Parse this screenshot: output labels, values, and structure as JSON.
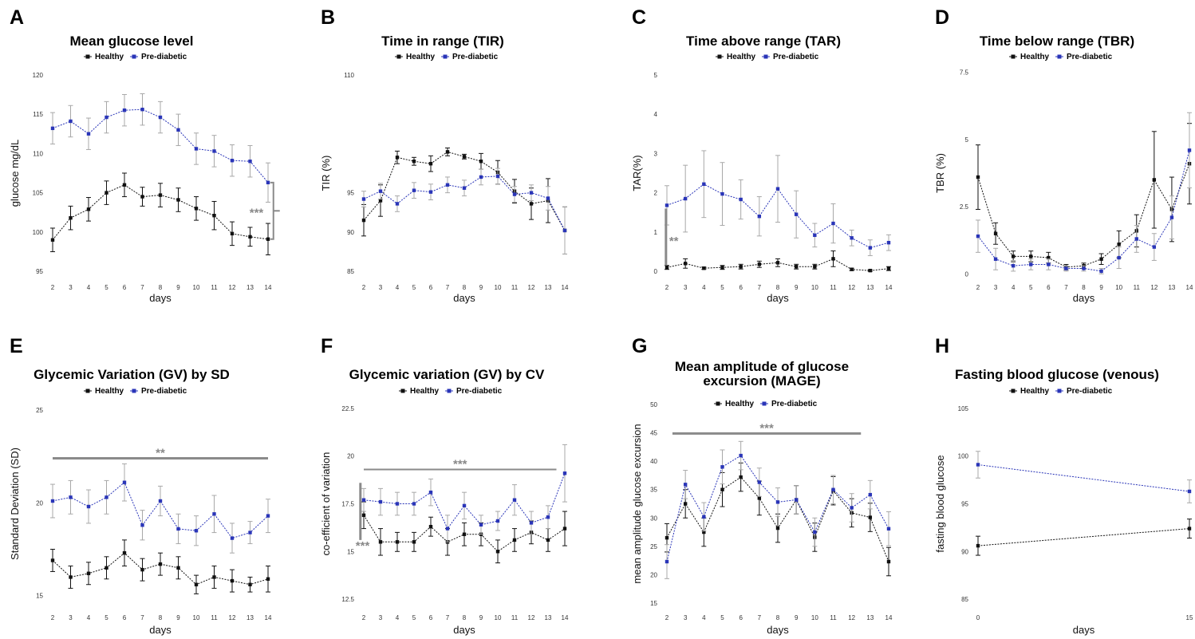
{
  "colors": {
    "healthy": "#111111",
    "prediabetic": "#2a35b8",
    "errbar_pre": "#a8a8a8",
    "sig": "#8a8a8a"
  },
  "chart_data": [
    {
      "letter": "A",
      "type": "line",
      "title": "Mean glucose level",
      "xlabel": "days",
      "ylabel": "glucose mg/dL",
      "ylim": [
        94,
        121
      ],
      "yticks": [
        95,
        100,
        105,
        110,
        115,
        120
      ],
      "x": [
        2,
        3,
        4,
        5,
        6,
        7,
        8,
        9,
        10,
        11,
        12,
        13,
        14
      ],
      "xticks": [
        "2",
        "3",
        "4",
        "5",
        "6",
        "7",
        "8",
        "9",
        "10",
        "11",
        "12",
        "13",
        "14"
      ],
      "legend": [
        "Healthy",
        "Pre-diabetic"
      ],
      "series": [
        {
          "name": "Healthy",
          "values": [
            99,
            101.8,
            102.9,
            105,
            106,
            104.5,
            104.7,
            104.1,
            103,
            102.1,
            99.8,
            99.4,
            99.1
          ],
          "err": [
            1.5,
            1.5,
            1.5,
            1.5,
            1.5,
            1.2,
            1.5,
            1.5,
            1.5,
            1.8,
            1.5,
            1.2,
            2
          ]
        },
        {
          "name": "Pre-diabetic",
          "values": [
            113.2,
            114.1,
            112.5,
            114.6,
            115.5,
            115.6,
            114.6,
            113,
            110.6,
            110.3,
            109.1,
            109,
            106.3
          ],
          "err": [
            2,
            2,
            2,
            2,
            2,
            2,
            2,
            2,
            2,
            2,
            2,
            2,
            2.5
          ]
        }
      ],
      "sig": {
        "label": "***",
        "kind": "bracket",
        "x": 14.3,
        "y1": 99.1,
        "y2": 106.3
      }
    },
    {
      "letter": "B",
      "type": "line",
      "title": "Time in range (TIR)",
      "xlabel": "days",
      "ylabel": "TIR (%)",
      "ylim": [
        84,
        111
      ],
      "yticks": [
        85,
        90,
        95,
        110
      ],
      "x": [
        2,
        3,
        4,
        5,
        6,
        7,
        8,
        9,
        10,
        11,
        12,
        13,
        14
      ],
      "xticks": [
        "2",
        "3",
        "4",
        "5",
        "6",
        "7",
        "8",
        "9",
        "10",
        "11",
        "12",
        "13",
        "14"
      ],
      "legend": [
        "Healthy",
        "Pre-diabetic"
      ],
      "series": [
        {
          "name": "Healthy",
          "values": [
            91.5,
            94,
            99.5,
            99,
            98.7,
            100.2,
            99.6,
            99,
            97.6,
            95.2,
            93.6,
            94,
            90.2
          ],
          "err": [
            2,
            2,
            0.8,
            0.5,
            1,
            0.5,
            0.3,
            1,
            1.5,
            1.5,
            2,
            2.8,
            3
          ]
        },
        {
          "name": "Pre-diabetic",
          "values": [
            94.2,
            95.2,
            93.6,
            95.3,
            95.1,
            96,
            95.6,
            97,
            97.1,
            94.8,
            95,
            94.3,
            90.2
          ],
          "err": [
            1,
            1,
            1,
            1,
            1,
            1,
            1,
            1,
            1,
            1,
            1,
            1.5,
            3
          ]
        }
      ]
    },
    {
      "letter": "C",
      "type": "line",
      "title": "Time above range (TAR)",
      "xlabel": "days",
      "ylabel": "TAR(%)",
      "ylim": [
        -0.2,
        5.2
      ],
      "yticks": [
        0,
        1,
        2,
        3,
        4,
        5
      ],
      "x": [
        2,
        3,
        4,
        5,
        6,
        7,
        8,
        9,
        10,
        11,
        12,
        13,
        14
      ],
      "xticks": [
        "2",
        "3",
        "4",
        "5",
        "6",
        "7",
        "8",
        "9",
        "10",
        "11",
        "12",
        "13",
        "14"
      ],
      "legend": [
        "Healthy",
        "Pre-diabetic"
      ],
      "series": [
        {
          "name": "Healthy",
          "values": [
            0.1,
            0.2,
            0.08,
            0.1,
            0.12,
            0.18,
            0.22,
            0.12,
            0.12,
            0.32,
            0.05,
            0.02,
            0.07
          ],
          "err": [
            0.05,
            0.12,
            0.03,
            0.05,
            0.06,
            0.08,
            0.1,
            0.06,
            0.06,
            0.2,
            0.03,
            0.02,
            0.05
          ]
        },
        {
          "name": "Pre-diabetic",
          "values": [
            1.68,
            1.85,
            2.22,
            1.97,
            1.83,
            1.4,
            2.1,
            1.45,
            0.92,
            1.22,
            0.85,
            0.6,
            0.73
          ],
          "err": [
            0.5,
            0.85,
            0.85,
            0.8,
            0.5,
            0.5,
            0.85,
            0.6,
            0.3,
            0.5,
            0.2,
            0.2,
            0.2
          ]
        }
      ],
      "sig": {
        "label": "**",
        "kind": "vline",
        "x": 1.95,
        "y1": 0.15,
        "y2": 1.6
      }
    },
    {
      "letter": "D",
      "type": "line",
      "title": "Time below range (TBR)",
      "xlabel": "days",
      "ylabel": "TBR (%)",
      "ylim": [
        -0.2,
        7.7
      ],
      "yticks": [
        0,
        2.5,
        5,
        7.5
      ],
      "x": [
        2,
        3,
        4,
        5,
        6,
        7,
        8,
        9,
        10,
        11,
        12,
        13,
        14
      ],
      "xticks": [
        "2",
        "3",
        "4",
        "5",
        "6",
        "7",
        "8",
        "9",
        "10",
        "11",
        "12",
        "13",
        "14"
      ],
      "legend": [
        "Healthy",
        "Pre-diabetic"
      ],
      "series": [
        {
          "name": "Healthy",
          "values": [
            3.6,
            1.5,
            0.65,
            0.65,
            0.6,
            0.25,
            0.3,
            0.55,
            1.1,
            1.6,
            3.5,
            2.4,
            4.1
          ],
          "err": [
            1.2,
            0.4,
            0.2,
            0.2,
            0.2,
            0.1,
            0.1,
            0.2,
            0.5,
            0.6,
            1.8,
            1.2,
            1.5
          ]
        },
        {
          "name": "Pre-diabetic",
          "values": [
            1.4,
            0.55,
            0.3,
            0.35,
            0.35,
            0.2,
            0.2,
            0.1,
            0.6,
            1.3,
            1,
            2.1,
            4.6
          ],
          "err": [
            0.6,
            0.4,
            0.2,
            0.2,
            0.2,
            0.1,
            0.1,
            0.1,
            0.4,
            0.5,
            0.5,
            0.8,
            1.4
          ]
        }
      ]
    },
    {
      "letter": "E",
      "type": "line",
      "title": "Glycemic Variation (GV) by SD",
      "xlabel": "days",
      "ylabel": "Standard Deviation (SD)",
      "ylim": [
        14.3,
        25.6
      ],
      "yticks": [
        15,
        20,
        25
      ],
      "x": [
        2,
        3,
        4,
        5,
        6,
        7,
        8,
        9,
        10,
        11,
        12,
        13,
        14
      ],
      "xticks": [
        "2",
        "3",
        "4",
        "5",
        "6",
        "7",
        "8",
        "9",
        "10",
        "11",
        "12",
        "13",
        "14"
      ],
      "legend": [
        "Healthy",
        "Pre-diabetic"
      ],
      "series": [
        {
          "name": "Healthy",
          "values": [
            16.9,
            16,
            16.2,
            16.5,
            17.3,
            16.4,
            16.7,
            16.5,
            15.6,
            16,
            15.8,
            15.6,
            15.9
          ],
          "err": [
            0.6,
            0.6,
            0.6,
            0.6,
            0.7,
            0.6,
            0.6,
            0.6,
            0.5,
            0.6,
            0.6,
            0.4,
            0.7
          ]
        },
        {
          "name": "Pre-diabetic",
          "values": [
            20.1,
            20.3,
            19.8,
            20.3,
            21.1,
            18.8,
            20.1,
            18.6,
            18.5,
            19.4,
            18.1,
            18.4,
            19.3
          ],
          "err": [
            0.9,
            0.9,
            0.9,
            0.9,
            1,
            0.8,
            0.8,
            0.8,
            0.8,
            1,
            0.8,
            0.6,
            0.9
          ]
        }
      ],
      "sig": {
        "label": "**",
        "kind": "hline",
        "x1": 2,
        "x2": 14,
        "y": 22.4
      }
    },
    {
      "letter": "F",
      "type": "line",
      "title": "Glycemic variation (GV) by CV",
      "xlabel": "days",
      "ylabel": "co-efficient of variation",
      "ylim": [
        12,
        23
      ],
      "yticks": [
        12.5,
        15,
        17.5,
        20,
        22.5
      ],
      "x": [
        2,
        3,
        4,
        5,
        6,
        7,
        8,
        9,
        10,
        11,
        12,
        13,
        14
      ],
      "xticks": [
        "2",
        "3",
        "4",
        "5",
        "6",
        "7",
        "8",
        "9",
        "10",
        "11",
        "12",
        "13",
        "14"
      ],
      "legend": [
        "Healthy",
        "Pre-diabetic"
      ],
      "series": [
        {
          "name": "Healthy",
          "values": [
            16.9,
            15.5,
            15.5,
            15.5,
            16.3,
            15.5,
            15.9,
            15.9,
            15,
            15.6,
            16,
            15.6,
            16.2
          ],
          "err": [
            0.7,
            0.7,
            0.5,
            0.5,
            0.5,
            0.7,
            0.6,
            0.6,
            0.6,
            0.6,
            0.6,
            0.6,
            0.9
          ]
        },
        {
          "name": "Pre-diabetic",
          "values": [
            17.7,
            17.6,
            17.5,
            17.5,
            18.1,
            16.2,
            17.4,
            16.4,
            16.6,
            17.7,
            16.5,
            16.8,
            19.1
          ],
          "err": [
            0.6,
            0.7,
            0.6,
            0.6,
            0.7,
            0.7,
            0.7,
            0.5,
            0.5,
            0.8,
            0.6,
            0.6,
            1.5
          ]
        }
      ],
      "sig": {
        "label": "***",
        "kind": "hline+vline",
        "x1": 2,
        "x2": 13.5,
        "y": 19.3,
        "vx": 1.8,
        "vy1": 15.6,
        "vy2": 18.6
      }
    },
    {
      "letter": "G",
      "type": "line",
      "title": "Mean amplitude of glucose",
      "title2": "excursion (MAGE)",
      "xlabel": "days",
      "ylabel": "mean amplitude glucose excursion",
      "ylim": [
        14,
        51
      ],
      "yticks": [
        15,
        20,
        25,
        30,
        35,
        40,
        45,
        50
      ],
      "x": [
        2,
        3,
        4,
        5,
        6,
        7,
        8,
        9,
        10,
        11,
        12,
        13,
        14
      ],
      "xticks": [
        "2",
        "3",
        "4",
        "5",
        "6",
        "7",
        "8",
        "9",
        "10",
        "11",
        "12",
        "13",
        "14"
      ],
      "legend": [
        "Healthy",
        "Pre-diabetic"
      ],
      "series": [
        {
          "name": "Healthy",
          "values": [
            26.5,
            32.5,
            27.5,
            35,
            37.2,
            33.5,
            28.2,
            33.2,
            26.6,
            34.8,
            30.9,
            30.1,
            22.3
          ],
          "err": [
            2.5,
            2.5,
            2.5,
            3,
            2.5,
            3,
            2.5,
            2.5,
            2.5,
            2.5,
            2.5,
            2.5,
            2.5
          ]
        },
        {
          "name": "Pre-diabetic",
          "values": [
            22.3,
            35.9,
            30.2,
            39,
            41,
            36.3,
            32.8,
            33.2,
            27.5,
            35,
            31.8,
            34.1,
            28.1
          ],
          "err": [
            3,
            2.5,
            2.5,
            3,
            2.5,
            2.5,
            2.5,
            2.5,
            2.5,
            2.5,
            2.5,
            2.5,
            3
          ]
        }
      ],
      "sig": {
        "label": "***",
        "kind": "hline",
        "x1": 2.3,
        "x2": 12.5,
        "y": 44.9
      }
    },
    {
      "letter": "H",
      "type": "line",
      "title": "Fasting blood glucose (venous)",
      "xlabel": "days",
      "ylabel": "fasting blood glucose",
      "ylim": [
        84,
        106
      ],
      "yticks": [
        85,
        90,
        95,
        100,
        105
      ],
      "x": [
        0,
        15
      ],
      "xticks": [
        "0",
        "15"
      ],
      "legend": [
        "Healthy",
        "Pre-diabetic"
      ],
      "series": [
        {
          "name": "Healthy",
          "values": [
            90.6,
            92.4
          ],
          "err": [
            1,
            1
          ]
        },
        {
          "name": "Pre-diabetic",
          "values": [
            99.1,
            96.3
          ],
          "err": [
            1.4,
            1.2
          ]
        }
      ]
    }
  ]
}
